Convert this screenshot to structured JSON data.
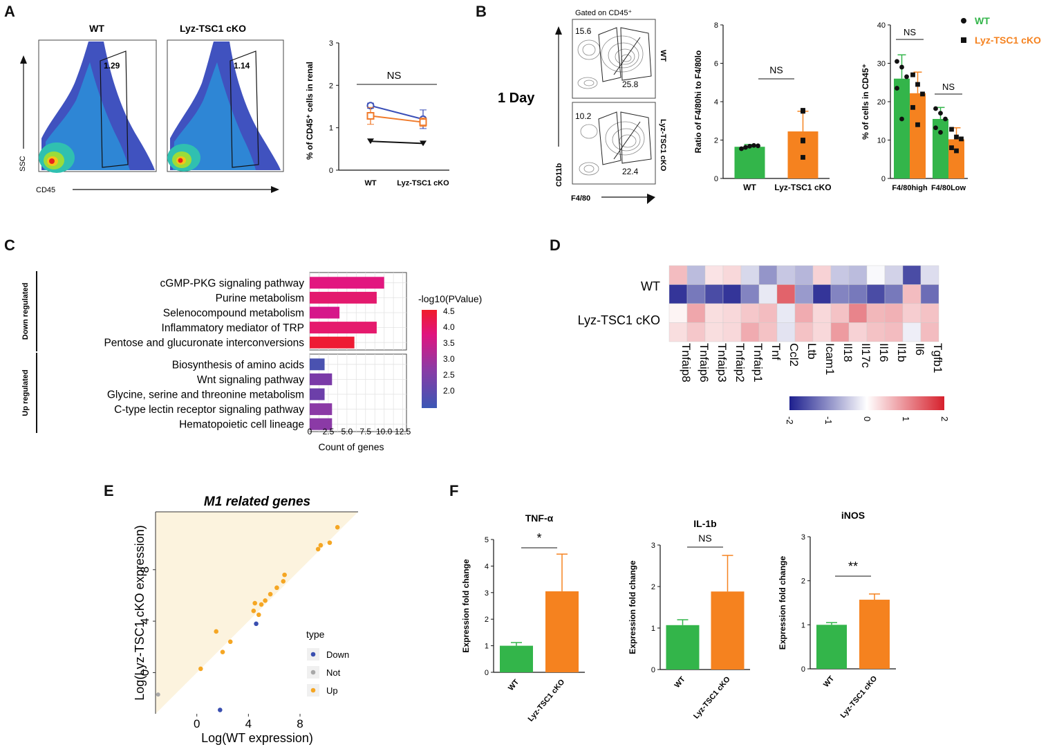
{
  "panels": {
    "A": {
      "letter": "A",
      "flow_titles": [
        "WT",
        "Lyz-TSC1 cKO"
      ],
      "gate_values": [
        "1.29",
        "1.14"
      ],
      "y_axis": "SSC",
      "x_axis": "CD45"
    },
    "B": {
      "letter": "B",
      "day_label": "1 Day",
      "gated_label": "Gated on CD45⁺",
      "sample_labels": [
        "WT",
        "Lyz-TSC1 cKO"
      ],
      "contour_values": [
        "15.6",
        "25.8",
        "10.2",
        "22.4"
      ],
      "y_axis": "CD11b",
      "x_axis": "F4/80"
    },
    "C": {
      "letter": "C"
    },
    "D": {
      "letter": "D"
    },
    "E": {
      "letter": "E"
    },
    "F": {
      "letter": "F"
    }
  },
  "chart_data": [
    {
      "id": "A-line",
      "type": "line",
      "ylabel": "% of CD45⁺ cells in renal",
      "categories": [
        "WT",
        "Lyz-TSC1 cKO"
      ],
      "ylim": [
        0,
        3
      ],
      "yticks": [
        0,
        1,
        2,
        3
      ],
      "series": [
        {
          "name": "blue",
          "color": "#3a4fb8",
          "marker": "circle-open",
          "values": [
            1.52,
            1.2
          ],
          "err": [
            0.06,
            0.22
          ]
        },
        {
          "name": "orange",
          "color": "#f07a2a",
          "marker": "square-open",
          "values": [
            1.28,
            1.13
          ],
          "err": [
            0.2,
            0.1
          ]
        },
        {
          "name": "black",
          "color": "#111111",
          "marker": "triangle",
          "values": [
            0.68,
            0.63
          ],
          "err": [
            0,
            0
          ]
        }
      ],
      "annotation": "NS"
    },
    {
      "id": "B-ratio",
      "type": "bar",
      "ylabel": "Ratio of F4/80hi to F4/80lo",
      "categories": [
        "WT",
        "Lyz-TSC1 cKO"
      ],
      "values": [
        1.65,
        2.45
      ],
      "err": [
        0.12,
        1.05
      ],
      "colors": [
        "#33b54a",
        "#f5821f"
      ],
      "points": [
        [
          1.55,
          1.62,
          1.68,
          1.72,
          1.7
        ],
        [
          3.55,
          3.5,
          2.0,
          1.95,
          1.1
        ]
      ],
      "ylim": [
        0,
        8
      ],
      "yticks": [
        0,
        2,
        4,
        6,
        8
      ],
      "annotation": "NS"
    },
    {
      "id": "B-grouped",
      "type": "bar",
      "ylabel": "% of cells in CD45⁺",
      "categories": [
        "F4/80high",
        "F4/80Low"
      ],
      "series": [
        {
          "name": "WT",
          "color": "#33b54a",
          "values": [
            26,
            15.5
          ],
          "err": [
            6.2,
            3.0
          ],
          "points": [
            [
              30.5,
              29,
              26.5,
              23.5,
              15.5
            ],
            [
              18.2,
              17,
              15.5,
              13.2,
              12
            ]
          ]
        },
        {
          "name": "Lyz-TSC1 cKO",
          "color": "#f5821f",
          "values": [
            22.2,
            10.2
          ],
          "err": [
            5.5,
            3.0
          ],
          "points": [
            [
              27,
              24.5,
              22,
              18.5,
              14
            ],
            [
              12.8,
              10.8,
              10.3,
              8,
              7.2
            ]
          ]
        }
      ],
      "ylim": [
        0,
        40
      ],
      "yticks": [
        0,
        10,
        20,
        30,
        40
      ],
      "annotations": [
        "NS",
        "NS"
      ],
      "legend": [
        "WT",
        "Lyz-TSC1 cKO"
      ],
      "legend_colors": [
        "#33b54a",
        "#f5821f"
      ]
    },
    {
      "id": "C-enrichment",
      "type": "bar",
      "orientation": "horizontal",
      "xlabel": "Count of genes",
      "group_labels": [
        "Down regulated",
        "Up regulated"
      ],
      "categories": [
        "cGMP-PKG signaling pathway",
        "Purine metabolism",
        "Selenocompound metabolism",
        "Inflammatory mediator of TRP",
        "Pentose and glucuronate interconversions",
        "Biosynthesis of amino acids",
        "Wnt signaling pathway",
        "Glycine, serine and threonine metabolism",
        "C-type lectin receptor signaling pathway",
        "Hematopoietic cell lineage"
      ],
      "values": [
        10,
        9,
        4,
        9,
        6,
        2,
        3,
        2,
        3,
        3
      ],
      "colors": [
        "#e2177f",
        "#e31a6e",
        "#d6178a",
        "#e51a6d",
        "#ee1c34",
        "#4a52b0",
        "#7a3aa8",
        "#6c3fa9",
        "#8b3aa6",
        "#8b3aa6"
      ],
      "xticks": [
        "0",
        "2.5",
        "5.0",
        "7.5",
        "10.0",
        "12.5"
      ],
      "xlim": [
        0,
        13
      ],
      "colorbar_title": "-log10(PValue)",
      "colorbar_ticks": [
        "4.5",
        "4.0",
        "3.5",
        "3.0",
        "2.5",
        "2.0"
      ]
    },
    {
      "id": "D-heatmap",
      "type": "heatmap",
      "row_labels": [
        "WT",
        "Lyz-TSC1 cKO"
      ],
      "columns": [
        "Tnfaip8",
        "Tnfaip6",
        "Tnfaip3",
        "Tnfaip2",
        "Tnfaip1",
        "Tnf",
        "Ccl2",
        "Ltb",
        "Icam1",
        "Il18",
        "Il17c",
        "Il16",
        "Il1b",
        "Il6",
        "Tgfb1"
      ],
      "values": [
        [
          0.6,
          -0.6,
          0.25,
          0.35,
          -0.35,
          -0.95,
          -0.5,
          -0.65,
          0.4,
          -0.5,
          -0.6,
          -0.05,
          -0.4,
          -1.6,
          -0.3
        ],
        [
          -1.8,
          -1.2,
          -1.6,
          -1.8,
          -1.1,
          -0.2,
          1.4,
          -0.9,
          -1.8,
          -1.1,
          -1.2,
          -1.6,
          -1.2,
          0.6,
          -1.3
        ],
        [
          0.1,
          0.8,
          0.3,
          0.35,
          0.5,
          0.6,
          -0.2,
          0.75,
          0.35,
          0.55,
          1.1,
          0.65,
          0.7,
          0.45,
          0.55
        ],
        [
          0.3,
          0.5,
          0.3,
          0.35,
          0.75,
          0.55,
          -0.25,
          0.55,
          0.35,
          0.9,
          0.4,
          0.55,
          0.6,
          -0.15,
          0.6
        ]
      ],
      "colorbar_ticks": [
        "-2",
        "-1",
        "0",
        "1",
        "2"
      ],
      "vmin": -2,
      "vmax": 2
    },
    {
      "id": "E-scatter",
      "type": "scatter",
      "title": "M1 related genes",
      "xlabel": "Log(WT expression)",
      "ylabel": "Log(Lyz-TSC1 cKO expression)",
      "xticks": [
        0,
        4,
        8
      ],
      "yticks": [
        0,
        4,
        8
      ],
      "xlim": [
        -3.2,
        12.5
      ],
      "ylim": [
        -3.2,
        12.5
      ],
      "legend_title": "type",
      "legend": [
        "Down",
        "Not",
        "Up"
      ],
      "legend_colors": [
        "#3a4fb0",
        "#a8a8a8",
        "#f5a623"
      ],
      "points_up": [
        [
          0.3,
          0.3
        ],
        [
          1.5,
          3.2
        ],
        [
          2.0,
          1.6
        ],
        [
          2.6,
          2.4
        ],
        [
          4.4,
          4.8
        ],
        [
          4.5,
          5.4
        ],
        [
          4.8,
          4.5
        ],
        [
          5.0,
          5.3
        ],
        [
          5.3,
          5.6
        ],
        [
          5.7,
          6.1
        ],
        [
          6.2,
          6.6
        ],
        [
          6.7,
          7.1
        ],
        [
          6.8,
          7.6
        ],
        [
          9.4,
          9.6
        ],
        [
          9.6,
          9.9
        ],
        [
          10.3,
          10.1
        ],
        [
          10.9,
          11.3
        ]
      ],
      "points_down": [
        [
          4.6,
          3.8
        ],
        [
          1.8,
          -2.9
        ]
      ],
      "points_not": [
        [
          -3.0,
          -1.7
        ]
      ]
    },
    {
      "id": "F-tnf",
      "type": "bar",
      "title": "TNF-α",
      "ylabel": "Expression fold change",
      "categories": [
        "WT",
        "Lyz-TSC1 cKO"
      ],
      "values": [
        1.0,
        3.05
      ],
      "err": [
        0.12,
        1.4
      ],
      "colors": [
        "#33b54a",
        "#f5821f"
      ],
      "ylim": [
        0,
        5
      ],
      "yticks": [
        0,
        1,
        2,
        3,
        4,
        5
      ],
      "annotation": "*"
    },
    {
      "id": "F-il1b",
      "type": "bar",
      "title": "IL-1b",
      "ylabel": "Expression fold change",
      "categories": [
        "WT",
        "Lyz-TSC1 cKO"
      ],
      "values": [
        1.07,
        1.88
      ],
      "err": [
        0.13,
        0.87
      ],
      "colors": [
        "#33b54a",
        "#f5821f"
      ],
      "ylim": [
        0,
        3
      ],
      "yticks": [
        0,
        1,
        2,
        3
      ],
      "annotation": "NS"
    },
    {
      "id": "F-inos",
      "type": "bar",
      "title": "iNOS",
      "ylabel": "Expression fold change",
      "categories": [
        "WT",
        "Lyz-TSC1 cKO"
      ],
      "values": [
        1.0,
        1.57
      ],
      "err": [
        0.05,
        0.13
      ],
      "colors": [
        "#33b54a",
        "#f5821f"
      ],
      "ylim": [
        0,
        3
      ],
      "yticks": [
        0,
        1,
        2,
        3
      ],
      "annotation": "**"
    }
  ]
}
